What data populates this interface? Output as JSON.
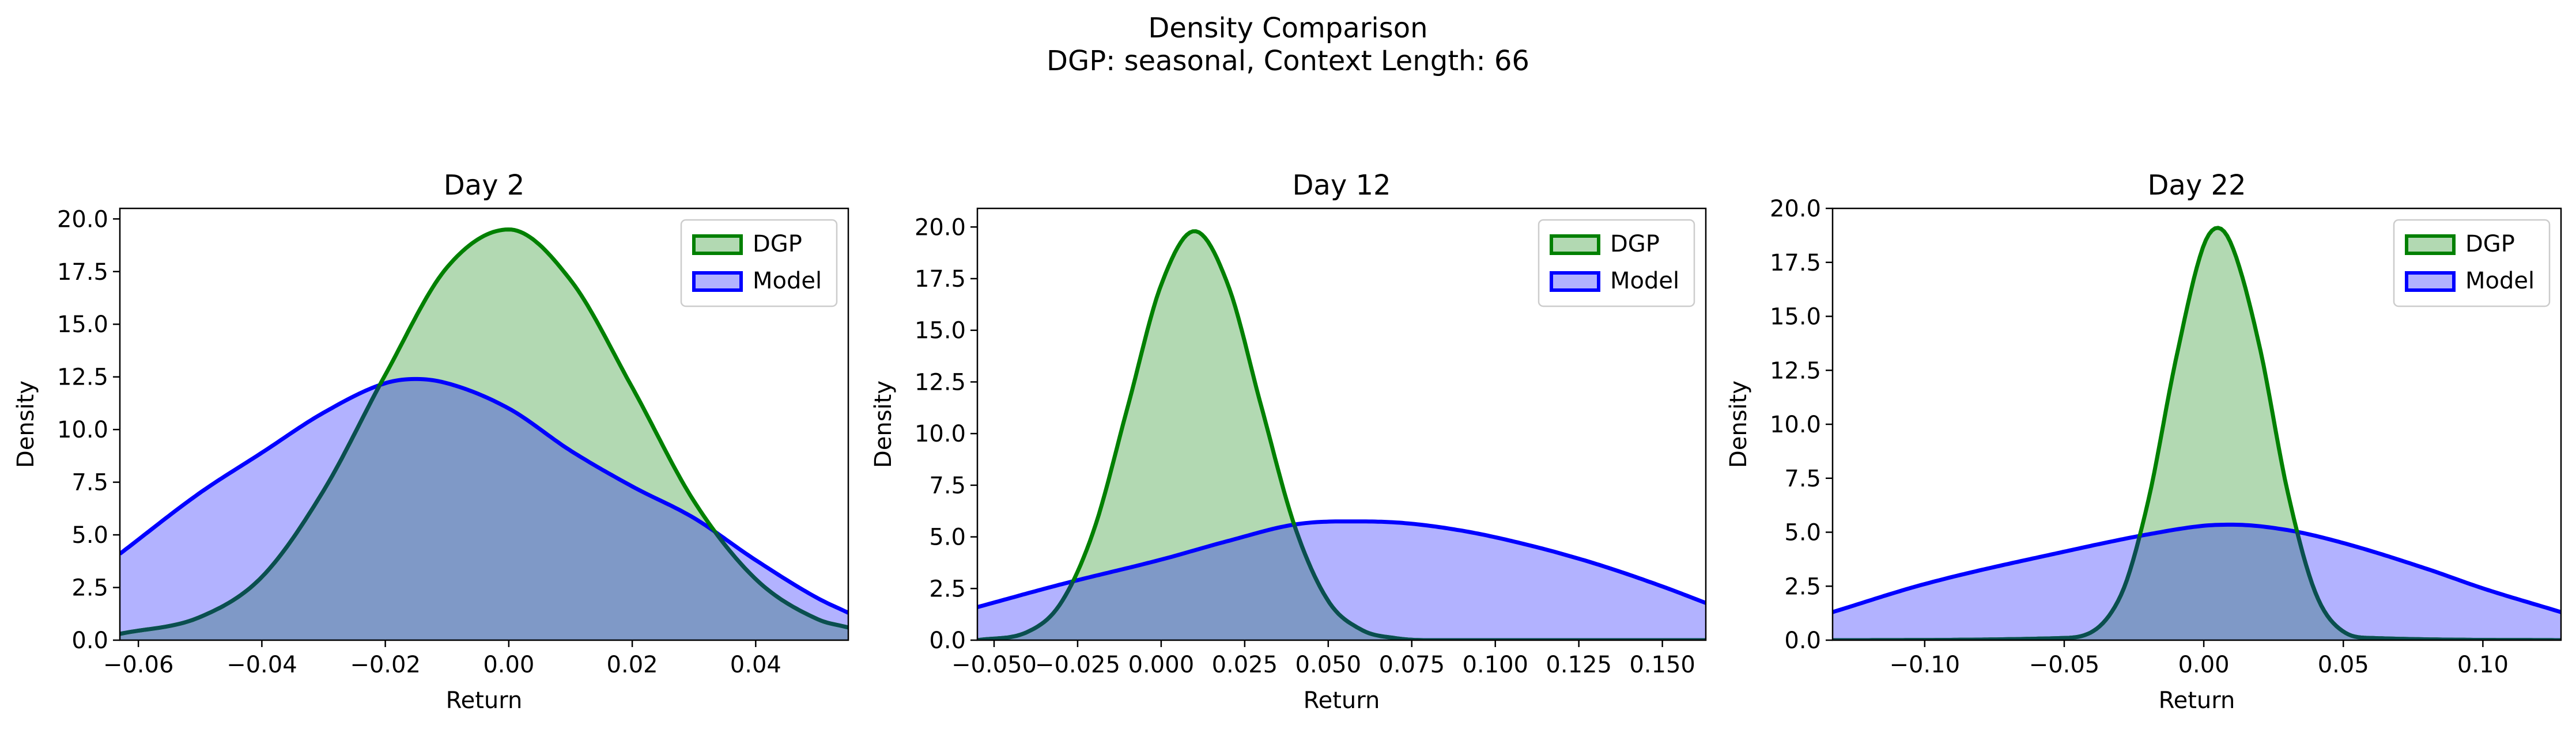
{
  "figure": {
    "title_line1": "Density Comparison",
    "title_line2": "DGP: seasonal, Context Length: 66"
  },
  "colors": {
    "dgp_line": "#008000",
    "dgp_fill": "#b2d9b2",
    "model_line": "#0000ff",
    "model_fill": "#b2b2ff",
    "overlap_fill": "#7f99c7"
  },
  "chart_data": [
    {
      "type": "area",
      "title": "Day 2",
      "xlabel": "Return",
      "ylabel": "Density",
      "xlim": [
        -0.063,
        0.055
      ],
      "ylim": [
        0,
        20.5
      ],
      "xticks": [
        -0.06,
        -0.04,
        -0.02,
        0.0,
        0.02,
        0.04
      ],
      "xtick_labels": [
        "−0.06",
        "−0.04",
        "−0.02",
        "0.00",
        "0.02",
        "0.04"
      ],
      "yticks": [
        0,
        2.5,
        5,
        7.5,
        10,
        12.5,
        15,
        17.5,
        20
      ],
      "ytick_labels": [
        "0.0",
        "2.5",
        "5.0",
        "7.5",
        "10.0",
        "12.5",
        "15.0",
        "17.5",
        "20.0"
      ],
      "legend": {
        "position": "upper right",
        "entries": [
          "DGP",
          "Model"
        ]
      },
      "grid": false,
      "series": [
        {
          "name": "DGP",
          "x": [
            -0.063,
            -0.05,
            -0.04,
            -0.03,
            -0.02,
            -0.01,
            0.0,
            0.01,
            0.02,
            0.03,
            0.04,
            0.05,
            0.055
          ],
          "y": [
            0.3,
            1.1,
            3.0,
            7.1,
            12.6,
            17.7,
            19.5,
            17.1,
            12.0,
            6.6,
            2.9,
            1.0,
            0.6
          ]
        },
        {
          "name": "Model",
          "x": [
            -0.063,
            -0.05,
            -0.04,
            -0.03,
            -0.02,
            -0.015,
            -0.01,
            0.0,
            0.01,
            0.02,
            0.03,
            0.04,
            0.05,
            0.055
          ],
          "y": [
            4.1,
            7.0,
            8.9,
            10.8,
            12.2,
            12.4,
            12.2,
            11.0,
            9.0,
            7.3,
            5.8,
            3.8,
            2.0,
            1.3
          ]
        }
      ]
    },
    {
      "type": "area",
      "title": "Day 12",
      "xlabel": "Return",
      "ylabel": "Density",
      "xlim": [
        -0.055,
        0.163
      ],
      "ylim": [
        0,
        20.9
      ],
      "xticks": [
        -0.05,
        -0.025,
        0.0,
        0.025,
        0.05,
        0.075,
        0.1,
        0.125,
        0.15
      ],
      "xtick_labels": [
        "−0.050",
        "−0.025",
        "0.000",
        "0.025",
        "0.050",
        "0.075",
        "0.100",
        "0.125",
        "0.150"
      ],
      "yticks": [
        0,
        2.5,
        5,
        7.5,
        10,
        12.5,
        15,
        17.5,
        20
      ],
      "ytick_labels": [
        "0.0",
        "2.5",
        "5.0",
        "7.5",
        "10.0",
        "12.5",
        "15.0",
        "17.5",
        "20.0"
      ],
      "legend": {
        "position": "upper right",
        "entries": [
          "DGP",
          "Model"
        ]
      },
      "grid": false,
      "series": [
        {
          "name": "DGP",
          "x": [
            -0.055,
            -0.04,
            -0.03,
            -0.02,
            -0.01,
            0.0,
            0.01,
            0.02,
            0.03,
            0.04,
            0.05,
            0.06,
            0.07,
            0.08,
            0.163
          ],
          "y": [
            0.0,
            0.4,
            1.8,
            5.4,
            11.3,
            17.2,
            19.8,
            17.2,
            11.3,
            5.5,
            1.9,
            0.5,
            0.1,
            0.0,
            0.0
          ]
        },
        {
          "name": "Model",
          "x": [
            -0.055,
            -0.03,
            0.0,
            0.02,
            0.04,
            0.055,
            0.07,
            0.09,
            0.11,
            0.13,
            0.15,
            0.163
          ],
          "y": [
            1.6,
            2.7,
            3.9,
            4.8,
            5.6,
            5.75,
            5.7,
            5.3,
            4.6,
            3.7,
            2.6,
            1.8
          ]
        }
      ]
    },
    {
      "type": "area",
      "title": "Day 22",
      "xlabel": "Return",
      "ylabel": "Density",
      "xlim": [
        -0.133,
        0.128
      ],
      "ylim": [
        0,
        20.0
      ],
      "xticks": [
        -0.1,
        -0.05,
        0.0,
        0.05,
        0.1
      ],
      "xtick_labels": [
        "−0.10",
        "−0.05",
        "0.00",
        "0.05",
        "0.10"
      ],
      "yticks": [
        0,
        2.5,
        5,
        7.5,
        10,
        12.5,
        15,
        17.5,
        20
      ],
      "ytick_labels": [
        "0.0",
        "2.5",
        "5.0",
        "7.5",
        "10.0",
        "12.5",
        "15.0",
        "17.5",
        "20.0"
      ],
      "legend": {
        "position": "upper right",
        "entries": [
          "DGP",
          "Model"
        ]
      },
      "grid": false,
      "series": [
        {
          "name": "DGP",
          "x": [
            -0.133,
            -0.05,
            -0.03,
            -0.02,
            -0.01,
            0.0,
            0.005,
            0.01,
            0.02,
            0.03,
            0.04,
            0.05,
            0.06,
            0.128
          ],
          "y": [
            0.0,
            0.1,
            2.0,
            6.4,
            13.0,
            18.3,
            19.1,
            18.3,
            13.6,
            6.9,
            2.2,
            0.4,
            0.1,
            0.0
          ]
        },
        {
          "name": "Model",
          "x": [
            -0.133,
            -0.1,
            -0.05,
            -0.02,
            0.0,
            0.01,
            0.03,
            0.05,
            0.08,
            0.1,
            0.128
          ],
          "y": [
            1.3,
            2.6,
            4.1,
            4.9,
            5.3,
            5.35,
            5.1,
            4.5,
            3.3,
            2.4,
            1.3
          ]
        }
      ]
    }
  ]
}
